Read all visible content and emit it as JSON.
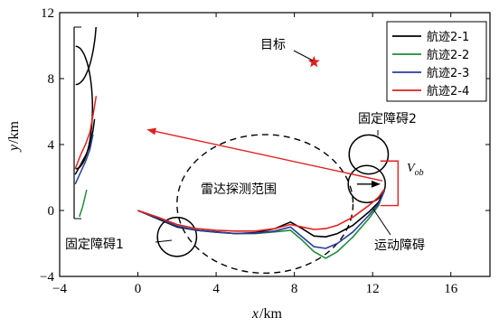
{
  "chart_data": {
    "type": "line",
    "xlabel": "x",
    "xunit": "/km",
    "ylabel": "y",
    "yunit": "/km",
    "xlim": [
      -4,
      18
    ],
    "ylim": [
      -4,
      12
    ],
    "xticks": [
      -4,
      0,
      4,
      8,
      12,
      16
    ],
    "yticks": [
      -4,
      0,
      4,
      8,
      12
    ],
    "legend_position": "top-right",
    "series": [
      {
        "name": "航迹2-1",
        "color": "#000000",
        "points": [
          [
            0,
            0
          ],
          [
            1,
            -0.5
          ],
          [
            2,
            -1.0
          ],
          [
            3,
            -1.2
          ],
          [
            4,
            -1.3
          ],
          [
            5,
            -1.4
          ],
          [
            6,
            -1.35
          ],
          [
            7,
            -1.1
          ],
          [
            7.8,
            -0.7
          ],
          [
            8.4,
            -1.1
          ],
          [
            9.0,
            -1.55
          ],
          [
            9.6,
            -1.6
          ],
          [
            10.2,
            -1.4
          ],
          [
            11,
            -0.9
          ],
          [
            11.8,
            -0.1
          ],
          [
            12.3,
            0.5
          ],
          [
            12.6,
            1.2
          ]
        ]
      },
      {
        "name": "航迹2-2",
        "color": "#1e8c3a",
        "points": [
          [
            0,
            0
          ],
          [
            1,
            -0.45
          ],
          [
            2,
            -0.95
          ],
          [
            3,
            -1.2
          ],
          [
            4,
            -1.32
          ],
          [
            5,
            -1.4
          ],
          [
            6,
            -1.4
          ],
          [
            7,
            -1.3
          ],
          [
            7.8,
            -1.2
          ],
          [
            8.4,
            -1.8
          ],
          [
            9.0,
            -2.5
          ],
          [
            9.6,
            -2.9
          ],
          [
            10.2,
            -2.5
          ],
          [
            11,
            -1.6
          ],
          [
            11.8,
            -0.5
          ],
          [
            12.3,
            0.3
          ],
          [
            12.6,
            1.2
          ]
        ]
      },
      {
        "name": "航迹2-3",
        "color": "#2b3c9c",
        "points": [
          [
            0,
            0
          ],
          [
            1,
            -0.45
          ],
          [
            2,
            -0.95
          ],
          [
            3,
            -1.2
          ],
          [
            4,
            -1.32
          ],
          [
            5,
            -1.4
          ],
          [
            6,
            -1.38
          ],
          [
            7,
            -1.25
          ],
          [
            7.8,
            -1.0
          ],
          [
            8.4,
            -1.6
          ],
          [
            9.0,
            -2.2
          ],
          [
            9.6,
            -2.3
          ],
          [
            10.2,
            -2.0
          ],
          [
            11,
            -1.3
          ],
          [
            11.8,
            -0.3
          ],
          [
            12.3,
            0.4
          ],
          [
            12.6,
            1.2
          ]
        ]
      },
      {
        "name": "航迹2-4",
        "color": "#e02020",
        "points": [
          [
            0,
            0
          ],
          [
            1,
            -0.4
          ],
          [
            2,
            -0.85
          ],
          [
            3,
            -1.1
          ],
          [
            4,
            -1.2
          ],
          [
            5,
            -1.25
          ],
          [
            6,
            -1.25
          ],
          [
            7,
            -1.1
          ],
          [
            7.8,
            -0.85
          ],
          [
            8.4,
            -1.0
          ],
          [
            9.0,
            -1.15
          ],
          [
            9.6,
            -1.1
          ],
          [
            10.2,
            -0.9
          ],
          [
            11,
            -0.4
          ],
          [
            11.8,
            0.3
          ],
          [
            12.3,
            0.8
          ],
          [
            12.6,
            1.3
          ]
        ]
      }
    ],
    "annotations": {
      "target_label": "目标",
      "target_point": [
        9,
        9
      ],
      "obstacle1_label": "固定障碍1",
      "obstacle2_label": "固定障碍2",
      "moving_label": "运动障碍",
      "radar_label": "雷达探测范围",
      "velocity_label": "V",
      "velocity_sub": "ob"
    },
    "obstacles": [
      {
        "cx": 2.0,
        "cy": -1.6,
        "r": 1.0
      },
      {
        "cx": 11.8,
        "cy": 3.4,
        "r": 1.0
      },
      {
        "cx": 11.7,
        "cy": 1.6,
        "r": 0.95
      }
    ],
    "radar": {
      "cx": 6.5,
      "cy": 0.4,
      "rx": 4.5,
      "ry": 4.2
    },
    "moving_box": [
      12.4,
      0.3,
      13.3,
      3.0
    ],
    "arrow_from": [
      12.5,
      1.8
    ],
    "arrow_to": [
      0.5,
      4.9
    ],
    "inset_position": "upper-left",
    "inset_xlim": [
      0,
      10
    ],
    "inset_ylim": [
      0,
      10
    ],
    "inset_series": [
      {
        "color": "#e02020",
        "points": [
          [
            0.2,
            2.6
          ],
          [
            1.2,
            3.3
          ],
          [
            2.2,
            3.9
          ],
          [
            3.0,
            4.5
          ],
          [
            3.6,
            5.4
          ],
          [
            4.2,
            6.4
          ]
        ]
      },
      {
        "color": "#000000",
        "points": [
          [
            0.2,
            2.3
          ],
          [
            1.2,
            2.8
          ],
          [
            2.2,
            3.3
          ],
          [
            3.0,
            3.8
          ],
          [
            3.6,
            4.6
          ],
          [
            3.9,
            5.2
          ]
        ]
      },
      {
        "color": "#2b3c9c",
        "points": [
          [
            0.2,
            1.8
          ],
          [
            1.2,
            2.4
          ],
          [
            2.2,
            3.0
          ],
          [
            3.0,
            3.6
          ],
          [
            3.6,
            4.4
          ]
        ]
      },
      {
        "color": "#1e8c3a",
        "points": [
          [
            1.0,
            0.1
          ],
          [
            1.6,
            0.6
          ],
          [
            2.4,
            1.5
          ]
        ]
      }
    ],
    "inset_arcs": [
      {
        "cx": 0.3,
        "cy": 11.0,
        "r": 4.0,
        "from": -90,
        "to": 10
      },
      {
        "cx": 0.3,
        "cy": 5.8,
        "r": 3.2,
        "from": -90,
        "to": 90
      }
    ]
  }
}
